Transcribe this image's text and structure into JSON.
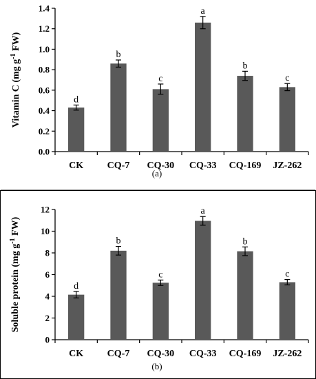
{
  "chart_data": [
    {
      "type": "bar",
      "title": "",
      "panel_label": "(a)",
      "categories": [
        "CK",
        "CQ-7",
        "CQ-30",
        "CQ-33",
        "CQ-169",
        "JZ-262"
      ],
      "values": [
        0.43,
        0.86,
        0.61,
        1.26,
        0.74,
        0.63
      ],
      "errors": [
        0.025,
        0.035,
        0.05,
        0.06,
        0.045,
        0.035
      ],
      "letters": [
        "d",
        "b",
        "c",
        "a",
        "b",
        "c"
      ],
      "ylabel_main": "Vitamin C (mg g",
      "ylabel_sup": "-1",
      "ylabel_end": " FW)",
      "xlabel": "",
      "ylim": [
        0,
        1.4
      ],
      "yticks": [
        0.0,
        0.2,
        0.4,
        0.6,
        0.8,
        1.0,
        1.2,
        1.4
      ],
      "ytick_labels": [
        "0.0",
        "0.2",
        "0.4",
        "0.6",
        "0.8",
        "1.0",
        "1.2",
        "1.4"
      ],
      "bar_color": "#595959",
      "grid": false,
      "legend": "none"
    },
    {
      "type": "bar",
      "title": "",
      "panel_label": "(b)",
      "categories": [
        "CK",
        "CQ-7",
        "CQ-30",
        "CQ-33",
        "CQ-169",
        "JZ-262"
      ],
      "values": [
        4.15,
        8.2,
        5.25,
        10.95,
        8.15,
        5.3
      ],
      "errors": [
        0.3,
        0.4,
        0.25,
        0.4,
        0.4,
        0.25
      ],
      "letters": [
        "d",
        "b",
        "c",
        "a",
        "b",
        "c"
      ],
      "ylabel_main": "Soluble protein (mg g",
      "ylabel_sup": "-1",
      "ylabel_end": " FW)",
      "xlabel": "",
      "ylim": [
        0,
        12
      ],
      "yticks": [
        0,
        2,
        4,
        6,
        8,
        10,
        12
      ],
      "ytick_labels": [
        "0",
        "2",
        "4",
        "6",
        "8",
        "10",
        "12"
      ],
      "bar_color": "#595959",
      "grid": false,
      "legend": "none"
    }
  ]
}
